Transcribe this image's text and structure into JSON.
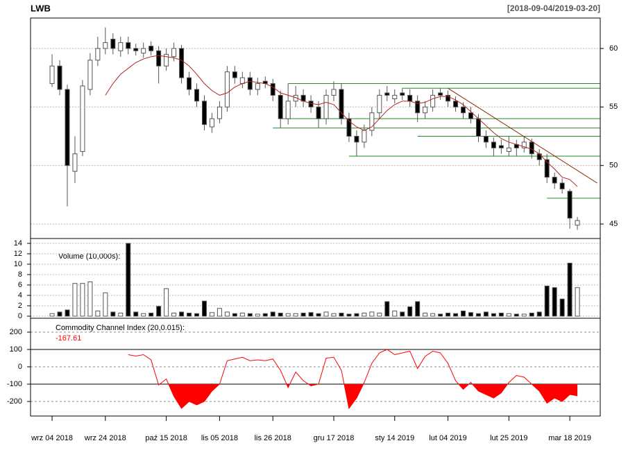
{
  "chart_data": {
    "type": "candlestick",
    "title": "LWB",
    "subtitle": "[2018-09-04/2019-03-20]",
    "open": [
      57,
      58.5,
      56.5,
      49.5,
      51.2,
      56.5,
      59,
      60,
      60.8,
      59.8,
      60.5,
      60,
      59.6,
      60.2,
      59.8,
      58.5,
      59.3,
      60,
      57.5,
      56.5,
      55.5,
      53.3,
      54,
      55,
      58,
      57,
      57.5,
      56.5,
      57.2,
      57,
      56,
      54,
      55.5,
      56,
      55.5,
      55,
      54,
      56,
      56.5,
      54,
      52.5,
      52,
      53,
      54.5,
      56.2,
      55.7,
      56.2,
      56,
      55.5,
      54.5,
      55,
      56.2,
      56,
      55.5,
      55,
      54.5,
      54,
      52.5,
      52,
      51.7,
      51.2,
      51.8,
      51.5,
      52,
      51,
      50.5,
      49,
      48.5,
      47.8,
      44.9
    ],
    "high": [
      59.5,
      59,
      56.9,
      52.5,
      57.3,
      59.6,
      61,
      61.8,
      61.3,
      61,
      61,
      60.4,
      60.5,
      60.6,
      60.2,
      60,
      60.5,
      60.3,
      58,
      57,
      56,
      54.5,
      55.5,
      58.5,
      58.5,
      58,
      58,
      57.5,
      57.6,
      57.4,
      56.4,
      57,
      56.8,
      56.5,
      56,
      55.5,
      56.5,
      57.2,
      57,
      54.5,
      53,
      53.5,
      55,
      56.5,
      56.8,
      56.5,
      56.6,
      56.5,
      56,
      55.5,
      56.5,
      56.6,
      56.4,
      55.9,
      55.4,
      55,
      54.4,
      53,
      52.4,
      52.2,
      52.5,
      52.2,
      52.5,
      52.3,
      51.4,
      51,
      49.4,
      48.9,
      48,
      45.6
    ],
    "low": [
      56.7,
      56,
      46.5,
      48.5,
      50.8,
      56,
      58.5,
      59.5,
      59.5,
      59.3,
      59.5,
      59.4,
      59.2,
      59.4,
      57,
      58.1,
      58.9,
      57,
      56,
      55,
      53,
      52.8,
      53.6,
      54.6,
      57,
      56.6,
      56,
      56,
      56.6,
      55.5,
      53.2,
      53.5,
      55,
      55,
      54.5,
      53.2,
      53.5,
      55.5,
      53.5,
      52,
      50.8,
      51.5,
      52.5,
      54,
      55.5,
      55.3,
      55.6,
      55,
      53.7,
      54,
      54.6,
      55.6,
      55,
      54.6,
      54,
      53.6,
      52,
      51.5,
      50.8,
      51,
      50.8,
      50.8,
      51.1,
      50.6,
      50,
      48.5,
      48,
      47.6,
      44.6,
      44.5
    ],
    "close": [
      58.5,
      56.5,
      50,
      51,
      56.8,
      59,
      60,
      60.5,
      60,
      60.5,
      60,
      59.8,
      60,
      59.8,
      58.5,
      59.5,
      60,
      57.5,
      56.5,
      55.5,
      53.5,
      54,
      55,
      58,
      57.5,
      57.5,
      56.5,
      57,
      57,
      56,
      54,
      55.5,
      56,
      55.5,
      55,
      54,
      56,
      56.5,
      54,
      52.5,
      52,
      53,
      54.5,
      56,
      56,
      56,
      56,
      55.5,
      54.5,
      55,
      56,
      56,
      55.5,
      55,
      54.5,
      54,
      52.5,
      52,
      51.5,
      51.5,
      51.5,
      51.5,
      52,
      51,
      50.5,
      49,
      48.5,
      48,
      45.5,
      45.3
    ],
    "up_color": "#ffffff",
    "down_color": "#000000",
    "ma": {
      "color": "#b22222",
      "values": [
        null,
        null,
        null,
        null,
        null,
        null,
        null,
        56,
        57,
        57.8,
        58.3,
        58.8,
        59.1,
        59.3,
        59.4,
        59.3,
        59.2,
        59,
        58.5,
        57.8,
        57,
        56.4,
        56,
        56.2,
        56.7,
        57,
        57.2,
        57.1,
        57,
        56.7,
        56.2,
        56,
        55.8,
        55.5,
        55.3,
        55.2,
        55.4,
        55.2,
        54.5,
        53.8,
        53.3,
        53,
        53.3,
        54,
        54.7,
        55.2,
        55.5,
        55.5,
        55.3,
        55.4,
        55.7,
        55.9,
        55.9,
        55.6,
        55.2,
        54.6,
        54,
        53.4,
        52.8,
        52.3,
        52,
        51.8,
        51.6,
        51.4,
        51,
        50.3,
        49.7,
        49,
        48.8,
        48.2
      ]
    },
    "trend_line": {
      "color": "#8b2500",
      "x": [
        52,
        71.6
      ],
      "values": [
        56.6,
        48.5
      ]
    },
    "levels": {
      "color": "#228b22",
      "start": [
        31,
        46,
        30,
        29,
        48,
        39,
        65
      ],
      "values": [
        57,
        56.6,
        54,
        53.2,
        52.5,
        50.8,
        47.2
      ]
    },
    "ylim": [
      43.76,
      62.6
    ],
    "yticks": [
      45,
      50,
      55,
      60
    ],
    "xlim": [
      -2.83,
      72.0
    ],
    "xticks": [
      {
        "value": 0,
        "label": "wrz 04 2018"
      },
      {
        "value": 7,
        "label": "wrz 24 2018"
      },
      {
        "value": 15,
        "label": "paź 15 2018"
      },
      {
        "value": 22,
        "label": "lis 05 2018"
      },
      {
        "value": 29,
        "label": "lis 26 2018"
      },
      {
        "value": 37,
        "label": "gru 17 2018"
      },
      {
        "value": 45,
        "label": "sty 14 2019"
      },
      {
        "value": 52,
        "label": "lut 04 2019"
      },
      {
        "value": 60,
        "label": "lut 25 2019"
      },
      {
        "value": 68,
        "label": "mar 18 2019"
      }
    ],
    "volume": {
      "label": "Volume (10,000s):",
      "values": [
        0.5,
        0.8,
        1.2,
        6.3,
        6.3,
        6.6,
        1,
        4.5,
        0.8,
        0.6,
        14,
        0.8,
        0.5,
        0.6,
        1.9,
        5.3,
        0.6,
        0.8,
        0.6,
        0.5,
        2.9,
        0.7,
        1.5,
        0.8,
        0.5,
        0.6,
        0.5,
        0.4,
        0.5,
        0.8,
        0.6,
        0.5,
        0.5,
        0.6,
        0.7,
        0.5,
        0.8,
        0.5,
        0.6,
        0.4,
        0.5,
        0.6,
        0.8,
        0.6,
        2.8,
        1.0,
        0.8,
        1.8,
        2.8,
        0.6,
        0.5,
        0.4,
        0.6,
        0.5,
        1.0,
        0.7,
        0.5,
        0.8,
        0.5,
        0.6,
        0.5,
        0.4,
        0.4,
        0.6,
        0.8,
        5.8,
        5.5,
        3.3,
        10.2,
        5.5
      ],
      "ylim": [
        -0.4,
        14.93
      ],
      "yticks": [
        0,
        2,
        4,
        6,
        8,
        10,
        12,
        14
      ]
    },
    "cci": {
      "label": "Commodity Channel Index (20,0.015):",
      "last": -167.61,
      "color": "#ff0000",
      "fill_color": "#ff0000",
      "fill_below": -100,
      "values": [
        null,
        null,
        null,
        null,
        null,
        null,
        null,
        null,
        null,
        null,
        70,
        62,
        70,
        40,
        -105,
        -70,
        -170,
        -240,
        -200,
        -220,
        -200,
        -140,
        -100,
        35,
        45,
        55,
        35,
        40,
        35,
        45,
        -20,
        -120,
        -30,
        -80,
        -110,
        -100,
        50,
        55,
        -20,
        -240,
        -180,
        -90,
        20,
        80,
        100,
        70,
        80,
        90,
        -10,
        60,
        90,
        80,
        20,
        -80,
        -130,
        -90,
        -140,
        -160,
        -180,
        -150,
        -90,
        -50,
        -60,
        -100,
        -140,
        -210,
        -180,
        -200,
        -160,
        -167.61
      ],
      "ylim": [
        -284,
        280
      ],
      "yticks": [
        -200,
        -100,
        0,
        100,
        200
      ]
    }
  }
}
